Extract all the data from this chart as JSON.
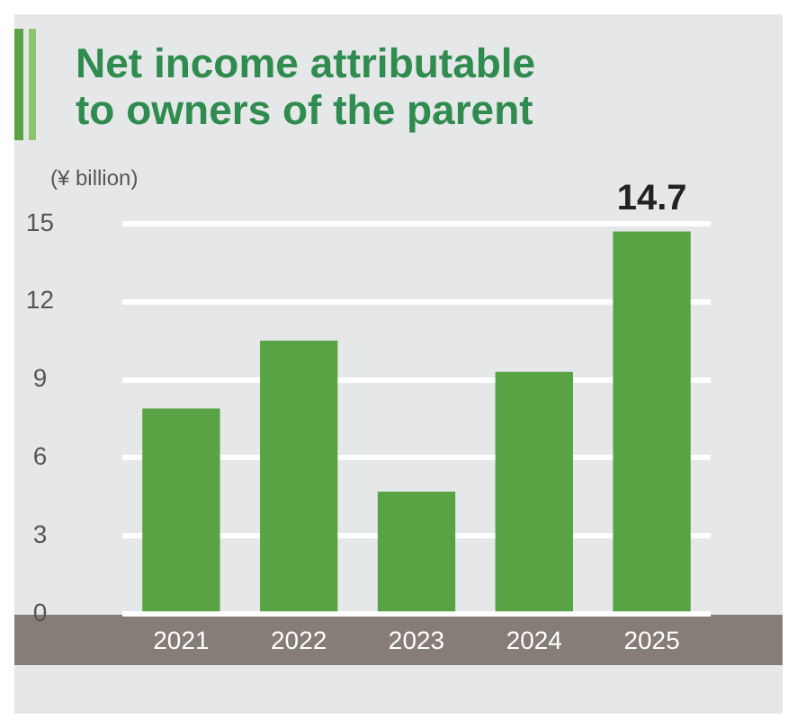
{
  "chart_data": {
    "type": "bar",
    "title": "Net income attributable\nto owners of the parent",
    "ylabel": "(¥ billion)",
    "categories": [
      "2021",
      "2022",
      "2023",
      "2024",
      "2025"
    ],
    "values": [
      7.9,
      10.5,
      4.7,
      9.3,
      14.7
    ],
    "value_labels": [
      null,
      null,
      null,
      null,
      "14.7"
    ],
    "color": "#58a445",
    "ylim": [
      0,
      15
    ],
    "yticks": [
      0,
      3,
      6,
      9,
      12,
      15
    ],
    "grid": "y",
    "legend": false
  }
}
